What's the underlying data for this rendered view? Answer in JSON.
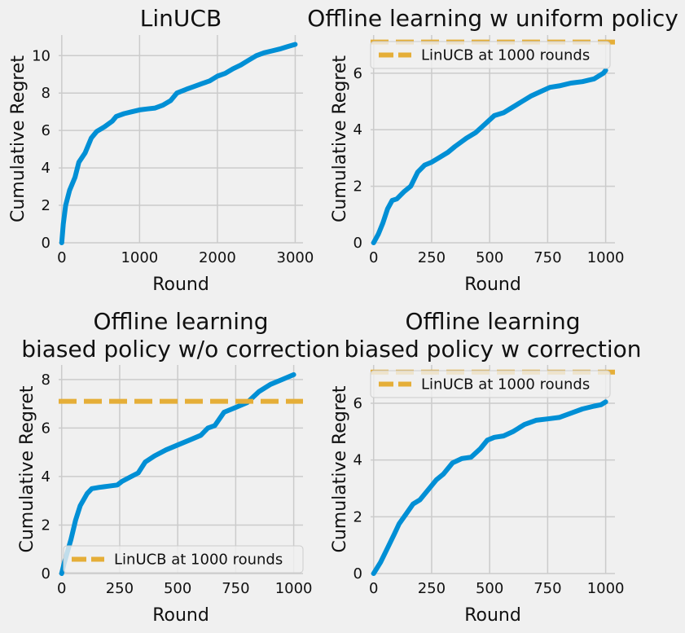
{
  "chart_data": [
    {
      "type": "line",
      "title": [
        "LinUCB"
      ],
      "xlabel": "Round",
      "ylabel": "Cumulative Regret",
      "xlim": [
        -40,
        3100
      ],
      "ylim": [
        0,
        11.1
      ],
      "xticks": [
        0,
        1000,
        2000,
        3000
      ],
      "yticks": [
        0,
        2,
        4,
        6,
        8,
        10
      ],
      "grid": true,
      "series": [
        {
          "color": "#008fd5",
          "points": [
            [
              0,
              0
            ],
            [
              20,
              1
            ],
            [
              50,
              2
            ],
            [
              100,
              2.8
            ],
            [
              170,
              3.5
            ],
            [
              220,
              4.3
            ],
            [
              300,
              4.8
            ],
            [
              380,
              5.6
            ],
            [
              450,
              5.95
            ],
            [
              550,
              6.2
            ],
            [
              650,
              6.5
            ],
            [
              700,
              6.75
            ],
            [
              800,
              6.9
            ],
            [
              900,
              7.0
            ],
            [
              1000,
              7.1
            ],
            [
              1100,
              7.15
            ],
            [
              1200,
              7.2
            ],
            [
              1300,
              7.35
            ],
            [
              1400,
              7.6
            ],
            [
              1480,
              8.0
            ],
            [
              1600,
              8.2
            ],
            [
              1700,
              8.35
            ],
            [
              1800,
              8.5
            ],
            [
              1900,
              8.65
            ],
            [
              2000,
              8.9
            ],
            [
              2100,
              9.05
            ],
            [
              2200,
              9.3
            ],
            [
              2300,
              9.5
            ],
            [
              2400,
              9.75
            ],
            [
              2500,
              10.0
            ],
            [
              2600,
              10.15
            ],
            [
              2700,
              10.25
            ],
            [
              2800,
              10.35
            ],
            [
              2900,
              10.48
            ],
            [
              3000,
              10.6
            ]
          ]
        }
      ],
      "legend": null
    },
    {
      "type": "line",
      "title": [
        "Offline learning w uniform policy"
      ],
      "xlabel": "Round",
      "ylabel": "Cumulative Regret",
      "xlim": [
        -13,
        1040
      ],
      "ylim": [
        0,
        7.35
      ],
      "xticks": [
        0,
        250,
        500,
        750,
        1000
      ],
      "yticks": [
        0,
        2,
        4,
        6
      ],
      "grid": true,
      "series": [
        {
          "color": "#008fd5",
          "points": [
            [
              0,
              0
            ],
            [
              20,
              0.3
            ],
            [
              40,
              0.7
            ],
            [
              60,
              1.2
            ],
            [
              80,
              1.5
            ],
            [
              100,
              1.55
            ],
            [
              130,
              1.8
            ],
            [
              160,
              2.0
            ],
            [
              190,
              2.5
            ],
            [
              220,
              2.75
            ],
            [
              250,
              2.85
            ],
            [
              280,
              3.0
            ],
            [
              320,
              3.2
            ],
            [
              350,
              3.4
            ],
            [
              400,
              3.7
            ],
            [
              440,
              3.9
            ],
            [
              480,
              4.2
            ],
            [
              520,
              4.5
            ],
            [
              560,
              4.6
            ],
            [
              600,
              4.8
            ],
            [
              640,
              5.0
            ],
            [
              680,
              5.2
            ],
            [
              720,
              5.35
            ],
            [
              760,
              5.5
            ],
            [
              800,
              5.55
            ],
            [
              850,
              5.65
            ],
            [
              900,
              5.7
            ],
            [
              950,
              5.8
            ],
            [
              970,
              5.9
            ],
            [
              990,
              6.0
            ],
            [
              1000,
              6.1
            ]
          ]
        },
        {
          "name": "LinUCB at 1000 rounds",
          "color": "#e5ae38",
          "dashed": true,
          "value": 7.1
        }
      ],
      "legend": "top-left"
    },
    {
      "type": "line",
      "title": [
        "Offline learning",
        "biased policy w/o correction"
      ],
      "xlabel": "Round",
      "ylabel": "Cumulative Regret",
      "xlim": [
        -13,
        1040
      ],
      "ylim": [
        0,
        8.6
      ],
      "xticks": [
        0,
        250,
        500,
        750,
        1000
      ],
      "yticks": [
        0,
        2,
        4,
        6,
        8
      ],
      "grid": true,
      "series": [
        {
          "color": "#008fd5",
          "points": [
            [
              0,
              0
            ],
            [
              10,
              0.4
            ],
            [
              25,
              0.9
            ],
            [
              40,
              1.4
            ],
            [
              60,
              2.2
            ],
            [
              80,
              2.8
            ],
            [
              110,
              3.3
            ],
            [
              130,
              3.5
            ],
            [
              160,
              3.55
            ],
            [
              200,
              3.6
            ],
            [
              240,
              3.65
            ],
            [
              260,
              3.8
            ],
            [
              300,
              4.0
            ],
            [
              330,
              4.15
            ],
            [
              360,
              4.6
            ],
            [
              400,
              4.85
            ],
            [
              450,
              5.1
            ],
            [
              500,
              5.3
            ],
            [
              550,
              5.5
            ],
            [
              600,
              5.7
            ],
            [
              630,
              6.0
            ],
            [
              660,
              6.1
            ],
            [
              700,
              6.65
            ],
            [
              750,
              6.85
            ],
            [
              800,
              7.05
            ],
            [
              850,
              7.5
            ],
            [
              900,
              7.8
            ],
            [
              950,
              8.0
            ],
            [
              1000,
              8.2
            ]
          ]
        },
        {
          "name": "LinUCB at 1000 rounds",
          "color": "#e5ae38",
          "dashed": true,
          "value": 7.1
        }
      ],
      "legend": "bottom-left"
    },
    {
      "type": "line",
      "title": [
        "Offline learning",
        "biased policy w correction"
      ],
      "xlabel": "Round",
      "ylabel": "Cumulative Regret",
      "xlim": [
        -13,
        1040
      ],
      "ylim": [
        0,
        7.35
      ],
      "xticks": [
        0,
        250,
        500,
        750,
        1000
      ],
      "yticks": [
        0,
        2,
        4,
        6
      ],
      "grid": true,
      "series": [
        {
          "color": "#008fd5",
          "points": [
            [
              0,
              0
            ],
            [
              30,
              0.4
            ],
            [
              60,
              0.9
            ],
            [
              90,
              1.4
            ],
            [
              110,
              1.75
            ],
            [
              140,
              2.1
            ],
            [
              170,
              2.45
            ],
            [
              200,
              2.6
            ],
            [
              240,
              3.0
            ],
            [
              270,
              3.3
            ],
            [
              300,
              3.5
            ],
            [
              340,
              3.9
            ],
            [
              380,
              4.05
            ],
            [
              420,
              4.1
            ],
            [
              460,
              4.4
            ],
            [
              490,
              4.7
            ],
            [
              520,
              4.8
            ],
            [
              560,
              4.85
            ],
            [
              600,
              5.0
            ],
            [
              650,
              5.25
            ],
            [
              700,
              5.4
            ],
            [
              750,
              5.45
            ],
            [
              800,
              5.5
            ],
            [
              850,
              5.65
            ],
            [
              900,
              5.8
            ],
            [
              950,
              5.9
            ],
            [
              980,
              5.95
            ],
            [
              1000,
              6.05
            ]
          ]
        },
        {
          "name": "LinUCB at 1000 rounds",
          "color": "#e5ae38",
          "dashed": true,
          "value": 7.1
        }
      ],
      "legend": "top-left"
    }
  ]
}
